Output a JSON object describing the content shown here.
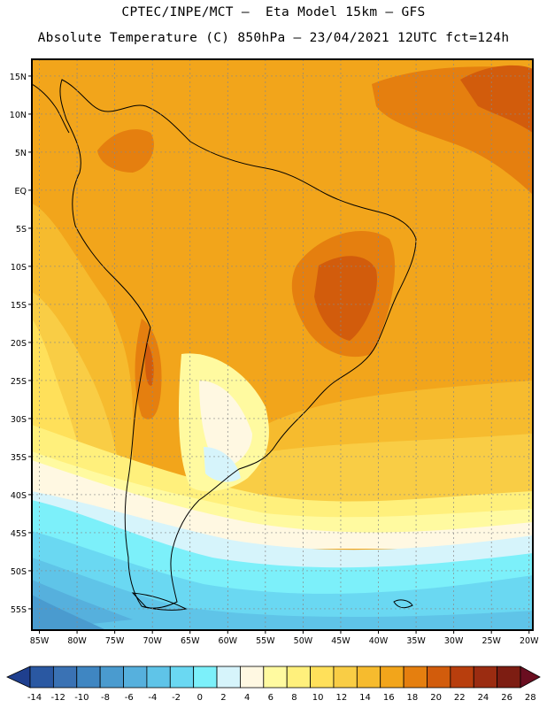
{
  "header": {
    "title_line1": "CPTEC/INPE/MCT –  Eta Model 15km – GFS",
    "title_line2": "Absolute Temperature (C) 850hPa – 23/04/2021 12UTC fct=124h"
  },
  "map": {
    "lat_labels": [
      "15N",
      "10N",
      "5N",
      "EQ",
      "5S",
      "10S",
      "15S",
      "20S",
      "25S",
      "30S",
      "35S",
      "40S",
      "45S",
      "50S",
      "55S"
    ],
    "lat_values": [
      15,
      10,
      5,
      0,
      -5,
      -10,
      -15,
      -20,
      -25,
      -30,
      -35,
      -40,
      -45,
      -50,
      -55
    ],
    "lon_labels": [
      "85W",
      "80W",
      "75W",
      "70W",
      "65W",
      "60W",
      "55W",
      "50W",
      "45W",
      "40W",
      "35W",
      "30W",
      "25W",
      "20W"
    ],
    "lon_values": [
      -85,
      -80,
      -75,
      -70,
      -65,
      -60,
      -55,
      -50,
      -45,
      -40,
      -35,
      -30,
      -25,
      -20
    ],
    "extent": {
      "lon_min": -86,
      "lon_max": -19.5,
      "lat_min": -57.8,
      "lat_max": 17.2
    }
  },
  "colorbar": {
    "tick_labels": [
      "-14",
      "-12",
      "-10",
      "-8",
      "-6",
      "-4",
      "-2",
      "0",
      "2",
      "4",
      "6",
      "8",
      "10",
      "12",
      "14",
      "16",
      "18",
      "20",
      "22",
      "24",
      "26",
      "28"
    ],
    "colors": [
      "#1f3f8e",
      "#2a58a2",
      "#3a72b4",
      "#3f86c2",
      "#4a9bcf",
      "#56b0dd",
      "#5fc4e8",
      "#6ad8f2",
      "#7cf0fa",
      "#d6f4fb",
      "#fff8e2",
      "#fffaa0",
      "#fff07c",
      "#ffe05a",
      "#f9cd45",
      "#f6bb2e",
      "#f2a51b",
      "#e57f0f",
      "#d25c0c",
      "#b83e0d",
      "#9b2c11",
      "#7d1d12",
      "#6a0e20"
    ]
  }
}
